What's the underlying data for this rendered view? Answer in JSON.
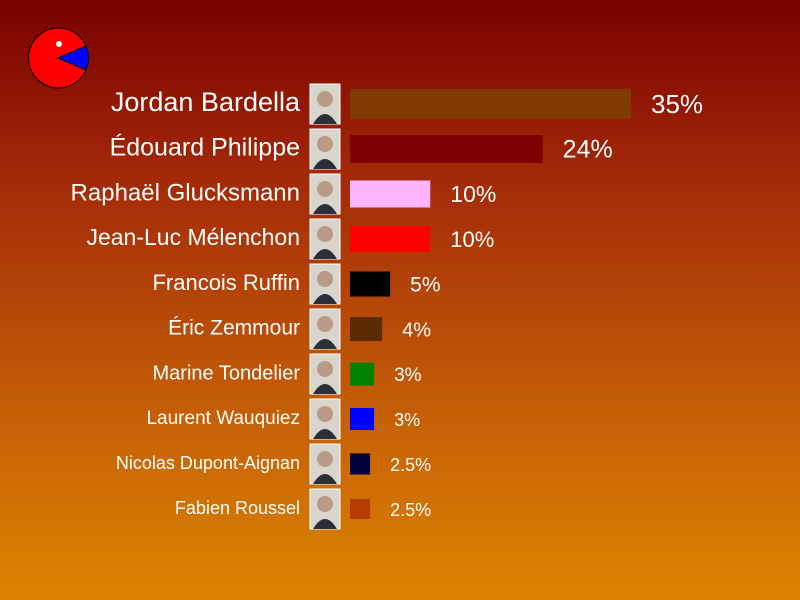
{
  "logo": {
    "icon": "pacman-pie-icon",
    "colors": [
      "#ff0000",
      "#0000ff"
    ]
  },
  "chart_data": {
    "type": "bar",
    "orientation": "horizontal",
    "title": "",
    "xlabel": "",
    "ylabel": "",
    "unit": "%",
    "xlim": [
      0,
      35
    ],
    "grid": false,
    "legend": "none",
    "categories": [
      "Jordan Bardella",
      "Édouard Philippe",
      "Raphaël Glucksmann",
      "Jean-Luc Mélenchon",
      "Francois Ruffin",
      "Éric Zemmour",
      "Marine Tondelier",
      "Laurent Wauquiez",
      "Nicolas Dupont-Aignan",
      "Fabien Roussel"
    ],
    "values": [
      35,
      24,
      10,
      10,
      5,
      4,
      3,
      3,
      2.5,
      2.5
    ],
    "value_labels": [
      "35%",
      "24%",
      "10%",
      "10%",
      "5%",
      "4%",
      "3%",
      "3%",
      "2.5%",
      "2.5%"
    ],
    "bar_colors": [
      "#7f3b00",
      "#7f0000",
      "#ffb6ff",
      "#ff0000",
      "#000000",
      "#5a2a00",
      "#008000",
      "#0000ff",
      "#00003a",
      "#b53b00"
    ],
    "portrait_icons": [
      "portrait-photo-icon",
      "portrait-photo-icon",
      "portrait-photo-icon",
      "portrait-photo-icon",
      "portrait-photo-icon",
      "portrait-photo-icon",
      "portrait-photo-icon",
      "portrait-photo-icon",
      "portrait-photo-icon",
      "portrait-photo-icon"
    ]
  }
}
